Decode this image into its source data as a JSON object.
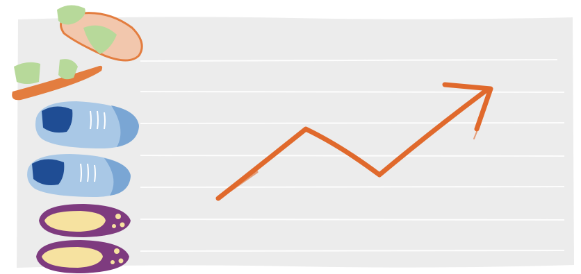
{
  "illustration": {
    "board": {
      "color": "#ececec",
      "line_color": "#ffffff"
    },
    "shoes": [
      {
        "name": "sandal",
        "colors": {
          "strap": "#b7d99a",
          "sole": "#e37d3f",
          "footbed": "#f2c7ad"
        }
      },
      {
        "name": "sneaker",
        "colors": {
          "body": "#a9c8e6",
          "toe": "#7aa6d4",
          "collar": "#1f4d94"
        }
      },
      {
        "name": "sneaker",
        "colors": {
          "body": "#a9c8e6",
          "toe": "#7aa6d4",
          "collar": "#1f4d94"
        }
      },
      {
        "name": "ballet-flat",
        "colors": {
          "body": "#7e3b7f",
          "lining": "#f6e2a0",
          "flower": "#f6e2a0"
        }
      },
      {
        "name": "ballet-flat",
        "colors": {
          "body": "#7e3b7f",
          "lining": "#f6e2a0",
          "flower": "#f6e2a0"
        }
      }
    ],
    "trend_arrow": {
      "direction": "up",
      "color": "#e0692c"
    }
  }
}
